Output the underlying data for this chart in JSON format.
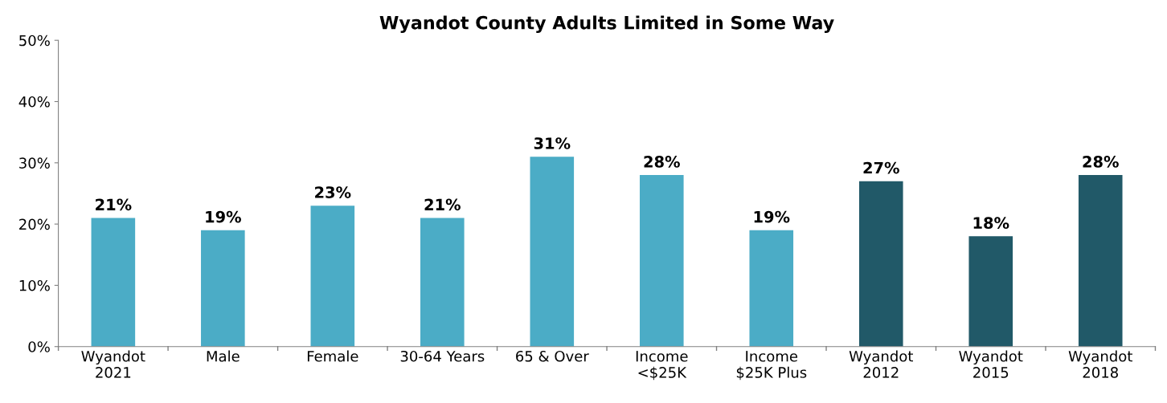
{
  "chart_data": {
    "type": "bar",
    "title": "Wyandot County Adults Limited in Some Way",
    "categories": [
      "Wyandot\n2021",
      "Male",
      "Female",
      "30-64 Years",
      "65 & Over",
      "Income\n<$25K",
      "Income\n$25K Plus",
      "Wyandot\n2012",
      "Wyandot\n2015",
      "Wyandot\n2018"
    ],
    "values": [
      21,
      19,
      23,
      21,
      31,
      28,
      19,
      27,
      18,
      28
    ],
    "colors": [
      "#4bacc6",
      "#4bacc6",
      "#4bacc6",
      "#4bacc6",
      "#4bacc6",
      "#4bacc6",
      "#4bacc6",
      "#215968",
      "#215968",
      "#215968"
    ],
    "value_labels": [
      "21%",
      "19%",
      "23%",
      "21%",
      "31%",
      "28%",
      "19%",
      "27%",
      "18%",
      "28%"
    ],
    "ylim": [
      0,
      50
    ],
    "yticks": [
      {
        "value": 0,
        "label": "0%"
      },
      {
        "value": 10,
        "label": "10%"
      },
      {
        "value": 20,
        "label": "20%"
      },
      {
        "value": 30,
        "label": "30%"
      },
      {
        "value": 40,
        "label": "40%"
      },
      {
        "value": 50,
        "label": "50%"
      }
    ],
    "grid": false,
    "legend": false
  }
}
